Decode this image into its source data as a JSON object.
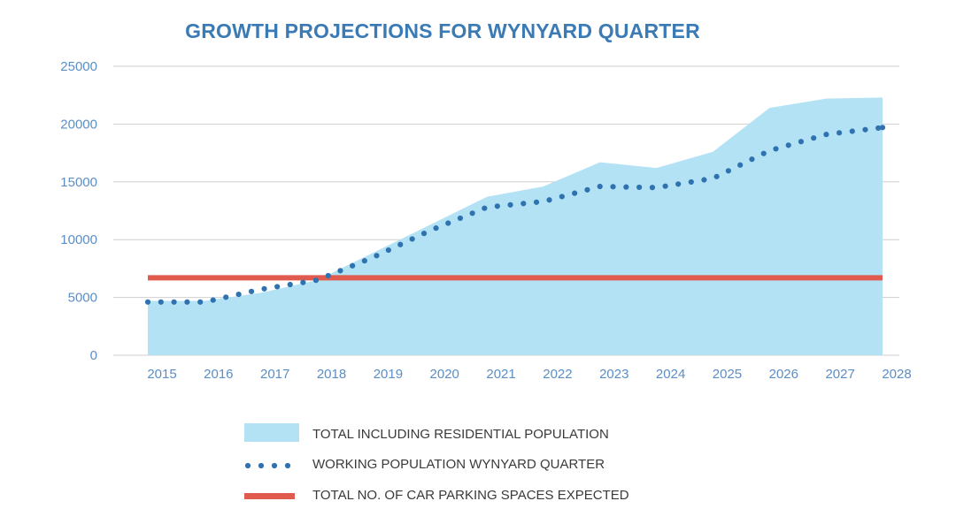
{
  "chart_data": {
    "type": "area",
    "title": "GROWTH PROJECTIONS FOR WYNYARD QUARTER",
    "xlabel": "",
    "ylabel": "",
    "x": [
      "2015",
      "2016",
      "2017",
      "2018",
      "2019",
      "2020",
      "2021",
      "2022",
      "2023",
      "2024",
      "2025",
      "2026",
      "2027",
      "2028"
    ],
    "ylim": [
      0,
      25000
    ],
    "yticks": [
      0,
      5000,
      10000,
      15000,
      20000,
      25000
    ],
    "grid": true,
    "legend_position": "bottom",
    "series": [
      {
        "name": "TOTAL INCLUDING RESIDENTIAL POPULATION",
        "style": "area",
        "color": "#b3e2f5",
        "values": [
          4700,
          4700,
          5400,
          6500,
          8900,
          11300,
          13700,
          14600,
          16700,
          16200,
          17600,
          21400,
          22200,
          22300
        ]
      },
      {
        "name": "WORKING POPULATION WYNYARD QUARTER",
        "style": "dotted-line",
        "color": "#2e72b0",
        "values": [
          4600,
          4600,
          5700,
          6500,
          8500,
          10800,
          12800,
          13300,
          14600,
          14500,
          15300,
          17700,
          19100,
          19700
        ]
      },
      {
        "name": "TOTAL NO. OF CAR PARKING SPACES EXPECTED",
        "style": "solid-line",
        "color": "#e15a4e",
        "values": [
          6700,
          6700,
          6700,
          6700,
          6700,
          6700,
          6700,
          6700,
          6700,
          6700,
          6700,
          6700,
          6700,
          6700
        ]
      }
    ]
  },
  "colors": {
    "title": "#3a7ab5",
    "tick": "#5b8ec5",
    "grid": "#cfcfcf"
  }
}
